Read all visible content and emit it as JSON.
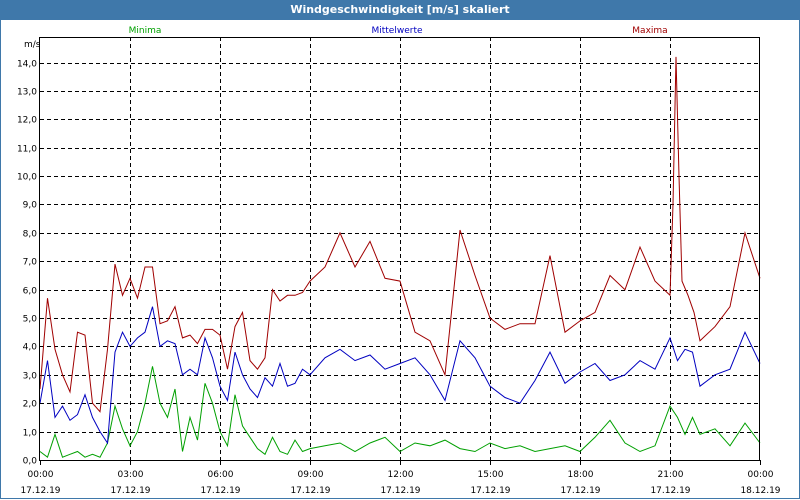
{
  "window": {
    "title": "Windgeschwindigkeit [m/s] skaliert"
  },
  "chart_data": {
    "type": "line",
    "title": "Windgeschwindigkeit [m/s] skaliert",
    "ylabel": "m/s",
    "ylim": [
      0,
      14.9
    ],
    "xlim": [
      0,
      24
    ],
    "grid": true,
    "legend_placement": "top",
    "y_ticks": [
      "0,0",
      "1,0",
      "2,0",
      "3,0",
      "4,0",
      "5,0",
      "6,0",
      "7,0",
      "8,0",
      "9,0",
      "10,0",
      "11,0",
      "12,0",
      "13,0",
      "14,0"
    ],
    "x_ticks": [
      {
        "time": "00:00",
        "date": "17.12.19"
      },
      {
        "time": "03:00",
        "date": "17.12.19"
      },
      {
        "time": "06:00",
        "date": "17.12.19"
      },
      {
        "time": "09:00",
        "date": "17.12.19"
      },
      {
        "time": "12:00",
        "date": "17.12.19"
      },
      {
        "time": "15:00",
        "date": "17.12.19"
      },
      {
        "time": "18:00",
        "date": "17.12.19"
      },
      {
        "time": "21:00",
        "date": "17.12.19"
      },
      {
        "time": "00:00",
        "date": "18.12.19"
      }
    ],
    "x_unit": "hours",
    "series": [
      {
        "name": "Minima",
        "color": "#00a000",
        "x": [
          0,
          0.25,
          0.5,
          0.75,
          1,
          1.25,
          1.5,
          1.75,
          2,
          2.25,
          2.5,
          2.75,
          3,
          3.25,
          3.5,
          3.75,
          4,
          4.25,
          4.5,
          4.75,
          5,
          5.25,
          5.5,
          5.75,
          6,
          6.25,
          6.5,
          6.75,
          7,
          7.25,
          7.5,
          7.75,
          8,
          8.25,
          8.5,
          8.75,
          9,
          9.5,
          10,
          10.5,
          11,
          11.5,
          12,
          12.5,
          13,
          13.5,
          14,
          14.5,
          15,
          15.5,
          16,
          16.5,
          17,
          17.5,
          18,
          18.5,
          19,
          19.5,
          20,
          20.5,
          21,
          21.25,
          21.5,
          21.75,
          22,
          22.5,
          23,
          23.5,
          24
        ],
        "values": [
          0.3,
          0.1,
          0.9,
          0.1,
          0.2,
          0.3,
          0.1,
          0.2,
          0.1,
          0.6,
          1.9,
          1.1,
          0.5,
          1.0,
          2.0,
          3.3,
          2.0,
          1.5,
          2.5,
          0.3,
          1.5,
          0.7,
          2.7,
          2.0,
          1.0,
          0.5,
          2.3,
          1.2,
          0.8,
          0.4,
          0.2,
          0.8,
          0.3,
          0.2,
          0.7,
          0.3,
          0.4,
          0.5,
          0.6,
          0.3,
          0.6,
          0.8,
          0.3,
          0.6,
          0.5,
          0.7,
          0.4,
          0.3,
          0.6,
          0.4,
          0.5,
          0.3,
          0.4,
          0.5,
          0.3,
          0.8,
          1.4,
          0.6,
          0.3,
          0.5,
          1.9,
          1.5,
          0.9,
          1.5,
          0.9,
          1.1,
          0.5,
          1.3,
          0.6
        ]
      },
      {
        "name": "Mittelwerte",
        "color": "#0000c0",
        "x": [
          0,
          0.25,
          0.5,
          0.75,
          1,
          1.25,
          1.5,
          1.75,
          2,
          2.25,
          2.5,
          2.75,
          3,
          3.25,
          3.5,
          3.75,
          4,
          4.25,
          4.5,
          4.75,
          5,
          5.25,
          5.5,
          5.75,
          6,
          6.25,
          6.5,
          6.75,
          7,
          7.25,
          7.5,
          7.75,
          8,
          8.25,
          8.5,
          8.75,
          9,
          9.5,
          10,
          10.5,
          11,
          11.5,
          12,
          12.5,
          13,
          13.5,
          14,
          14.5,
          15,
          15.5,
          16,
          16.5,
          17,
          17.5,
          18,
          18.5,
          19,
          19.5,
          20,
          20.5,
          21,
          21.25,
          21.5,
          21.75,
          22,
          22.5,
          23,
          23.5,
          24
        ],
        "values": [
          2.0,
          3.5,
          1.5,
          1.9,
          1.4,
          1.6,
          2.3,
          1.5,
          1.0,
          0.6,
          3.8,
          4.5,
          4.0,
          4.3,
          4.5,
          5.4,
          4.0,
          4.2,
          4.1,
          3.0,
          3.2,
          3.0,
          4.3,
          3.6,
          2.6,
          2.1,
          3.8,
          3.0,
          2.5,
          2.2,
          2.9,
          2.6,
          3.4,
          2.6,
          2.7,
          3.2,
          3.0,
          3.6,
          3.9,
          3.5,
          3.7,
          3.2,
          3.4,
          3.6,
          3.0,
          2.1,
          4.2,
          3.6,
          2.6,
          2.2,
          2.0,
          2.8,
          3.8,
          2.7,
          3.1,
          3.4,
          2.8,
          3.0,
          3.5,
          3.2,
          4.3,
          3.5,
          3.9,
          3.8,
          2.6,
          3.0,
          3.2,
          4.5,
          3.4
        ]
      },
      {
        "name": "Maxima",
        "color": "#a00000",
        "x": [
          0,
          0.25,
          0.5,
          0.75,
          1,
          1.25,
          1.5,
          1.75,
          2,
          2.25,
          2.5,
          2.75,
          3,
          3.25,
          3.5,
          3.75,
          4,
          4.25,
          4.5,
          4.75,
          5,
          5.25,
          5.5,
          5.75,
          6,
          6.25,
          6.5,
          6.75,
          7,
          7.25,
          7.5,
          7.75,
          8,
          8.25,
          8.5,
          8.75,
          9,
          9.5,
          10,
          10.5,
          11,
          11.5,
          12,
          12.5,
          13,
          13.5,
          14,
          14.5,
          15,
          15.5,
          16,
          16.5,
          17,
          17.5,
          18,
          18.5,
          19,
          19.5,
          20,
          20.5,
          21,
          21.1,
          21.2,
          21.3,
          21.4,
          21.6,
          21.8,
          22,
          22.5,
          23,
          23.5,
          24
        ],
        "values": [
          2.5,
          5.7,
          3.9,
          3.0,
          2.4,
          4.5,
          4.4,
          2.0,
          1.7,
          3.9,
          6.9,
          5.8,
          6.4,
          5.7,
          6.8,
          6.8,
          4.8,
          4.9,
          5.4,
          4.3,
          4.4,
          4.1,
          4.6,
          4.6,
          4.4,
          3.2,
          4.7,
          5.2,
          3.5,
          3.2,
          3.6,
          6.0,
          5.6,
          5.8,
          5.8,
          5.9,
          6.3,
          6.8,
          8.0,
          6.8,
          7.7,
          6.4,
          6.3,
          4.5,
          4.2,
          3.0,
          8.1,
          6.5,
          5.0,
          4.6,
          4.8,
          4.8,
          7.2,
          4.5,
          4.9,
          5.2,
          6.5,
          6.0,
          7.5,
          6.3,
          5.8,
          9.0,
          14.2,
          10.0,
          6.3,
          5.8,
          5.2,
          4.2,
          4.7,
          5.4,
          8.0,
          6.4
        ]
      }
    ]
  }
}
